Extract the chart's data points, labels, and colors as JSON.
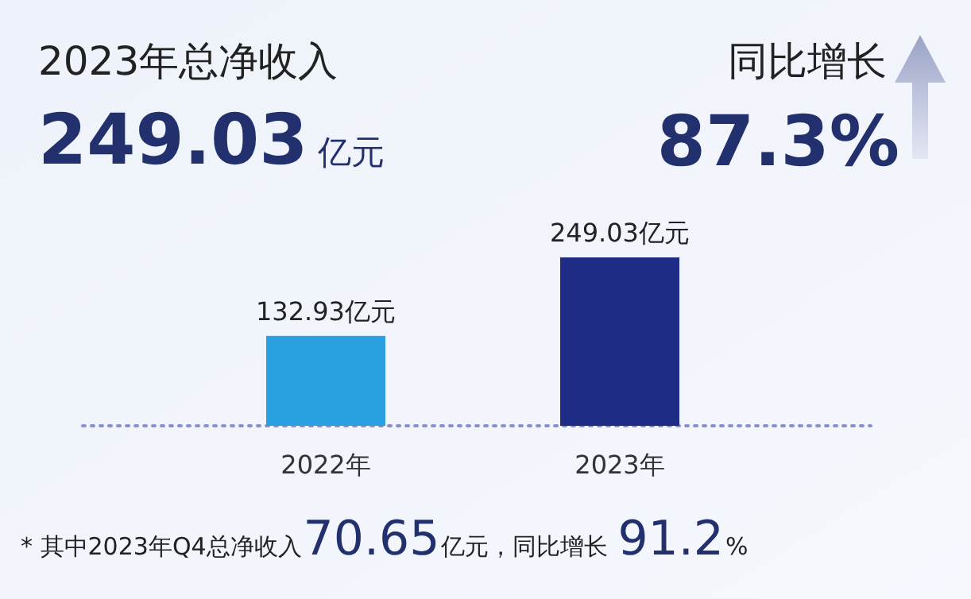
{
  "chart_data": {
    "type": "bar",
    "title": "2023年总净收入",
    "categories": [
      "2022年",
      "2023年"
    ],
    "values": [
      132.93,
      249.03
    ],
    "colors": [
      "#2aa0e0",
      "#1f2c86"
    ],
    "value_labels": [
      "132.93亿元",
      "249.03亿元"
    ],
    "annotations": [
      "249.03",
      "亿元",
      "同比增长",
      "87.3%",
      "* 其中2023年Q4总净收入",
      "70.65",
      "亿元，同比增长",
      "91.2",
      "%"
    ]
  }
}
